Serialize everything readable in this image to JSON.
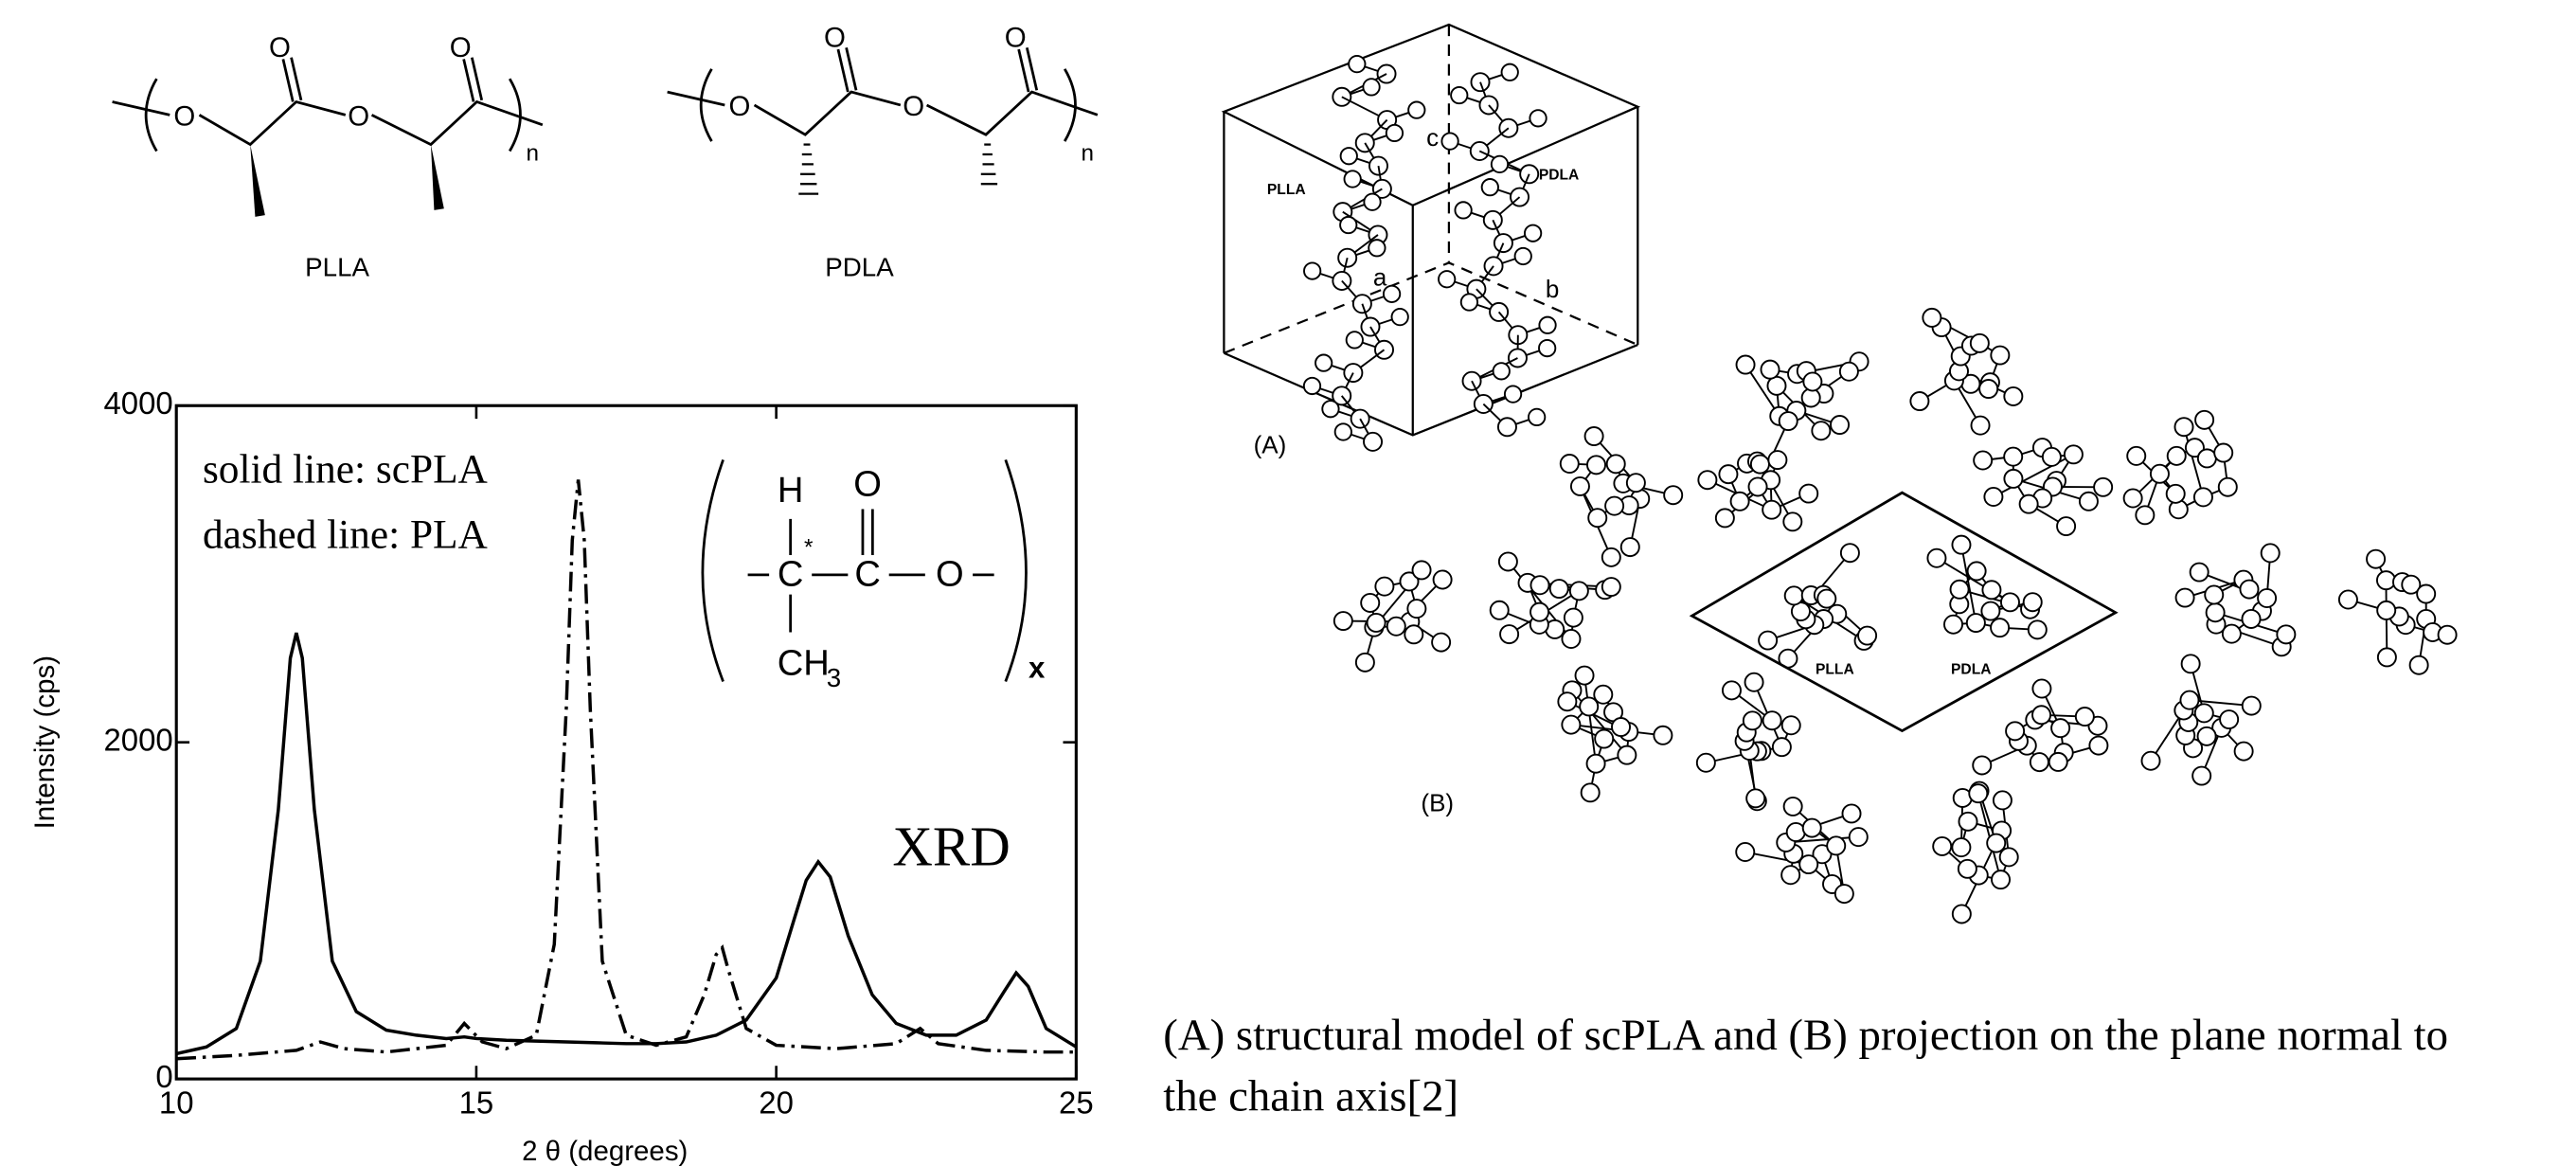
{
  "chart_data": {
    "type": "line",
    "xlabel": "2 θ (degrees)",
    "ylabel": "Intensity (cps)",
    "xlim": [
      10,
      25
    ],
    "xticks": [
      10,
      15,
      20,
      25
    ],
    "ylim": [
      0,
      4000
    ],
    "yticks": [
      0,
      2000,
      4000
    ],
    "annotation": "XRD",
    "series": [
      {
        "name": "dashed line: PLA",
        "color": "#000000",
        "dash": "dashdot",
        "x": [
          10,
          11,
          12,
          12.4,
          12.8,
          13.5,
          14.5,
          14.8,
          15.1,
          15.5,
          16,
          16.3,
          16.5,
          16.6,
          16.7,
          16.8,
          16.9,
          17.1,
          17.5,
          18,
          18.5,
          18.8,
          19.0,
          19.1,
          19.2,
          19.5,
          20,
          21,
          22,
          22.4,
          22.7,
          23.5,
          24.5,
          25
        ],
        "values": [
          120,
          140,
          170,
          220,
          180,
          160,
          200,
          330,
          220,
          180,
          260,
          800,
          2200,
          3200,
          3560,
          3200,
          2200,
          700,
          260,
          200,
          250,
          500,
          740,
          780,
          650,
          300,
          200,
          180,
          210,
          300,
          210,
          170,
          160,
          160
        ]
      },
      {
        "name": "solid line: scPLA",
        "color": "#000000",
        "dash": "solid",
        "x": [
          10,
          10.5,
          11,
          11.4,
          11.7,
          11.9,
          12.0,
          12.1,
          12.3,
          12.6,
          13,
          13.5,
          14,
          14.5,
          14.8,
          15,
          15.5,
          16,
          16.5,
          17,
          17.5,
          18,
          18.5,
          19,
          19.5,
          20,
          20.3,
          20.5,
          20.7,
          20.9,
          21.2,
          21.6,
          22,
          22.5,
          23,
          23.5,
          23.8,
          24,
          24.2,
          24.5,
          25
        ],
        "values": [
          150,
          190,
          300,
          700,
          1600,
          2500,
          2650,
          2500,
          1600,
          700,
          400,
          290,
          260,
          240,
          250,
          240,
          230,
          225,
          220,
          215,
          210,
          210,
          220,
          260,
          350,
          600,
          950,
          1180,
          1290,
          1200,
          850,
          500,
          330,
          260,
          260,
          350,
          520,
          630,
          550,
          300,
          190
        ]
      }
    ]
  },
  "formula": {
    "h": "H",
    "o_top": "O",
    "c_star": "C",
    "star": "*",
    "c": "C",
    "o": "O",
    "methyl": "CH",
    "methyl_sub": "3",
    "repeat": "x"
  },
  "structures": [
    {
      "label": "PLLA",
      "atoms": [
        "O",
        "O",
        "O",
        "O"
      ],
      "repeat": "n"
    },
    {
      "label": "PDLA",
      "atoms": [
        "O",
        "O",
        "O",
        "O"
      ],
      "repeat": "n"
    }
  ],
  "model": {
    "panel_a": "(A)",
    "panel_b": "(B)",
    "a_plla": "PLLA",
    "a_pdla": "PDLA",
    "axis_a": "a",
    "axis_b": "b",
    "axis_c": "c",
    "b_plla": "PLLA",
    "b_pdla": "PDLA"
  },
  "caption": {
    "line1": "(A) structural model of scPLA and (B) projection on the plane normal to",
    "line2": "the chain axis[2]"
  }
}
